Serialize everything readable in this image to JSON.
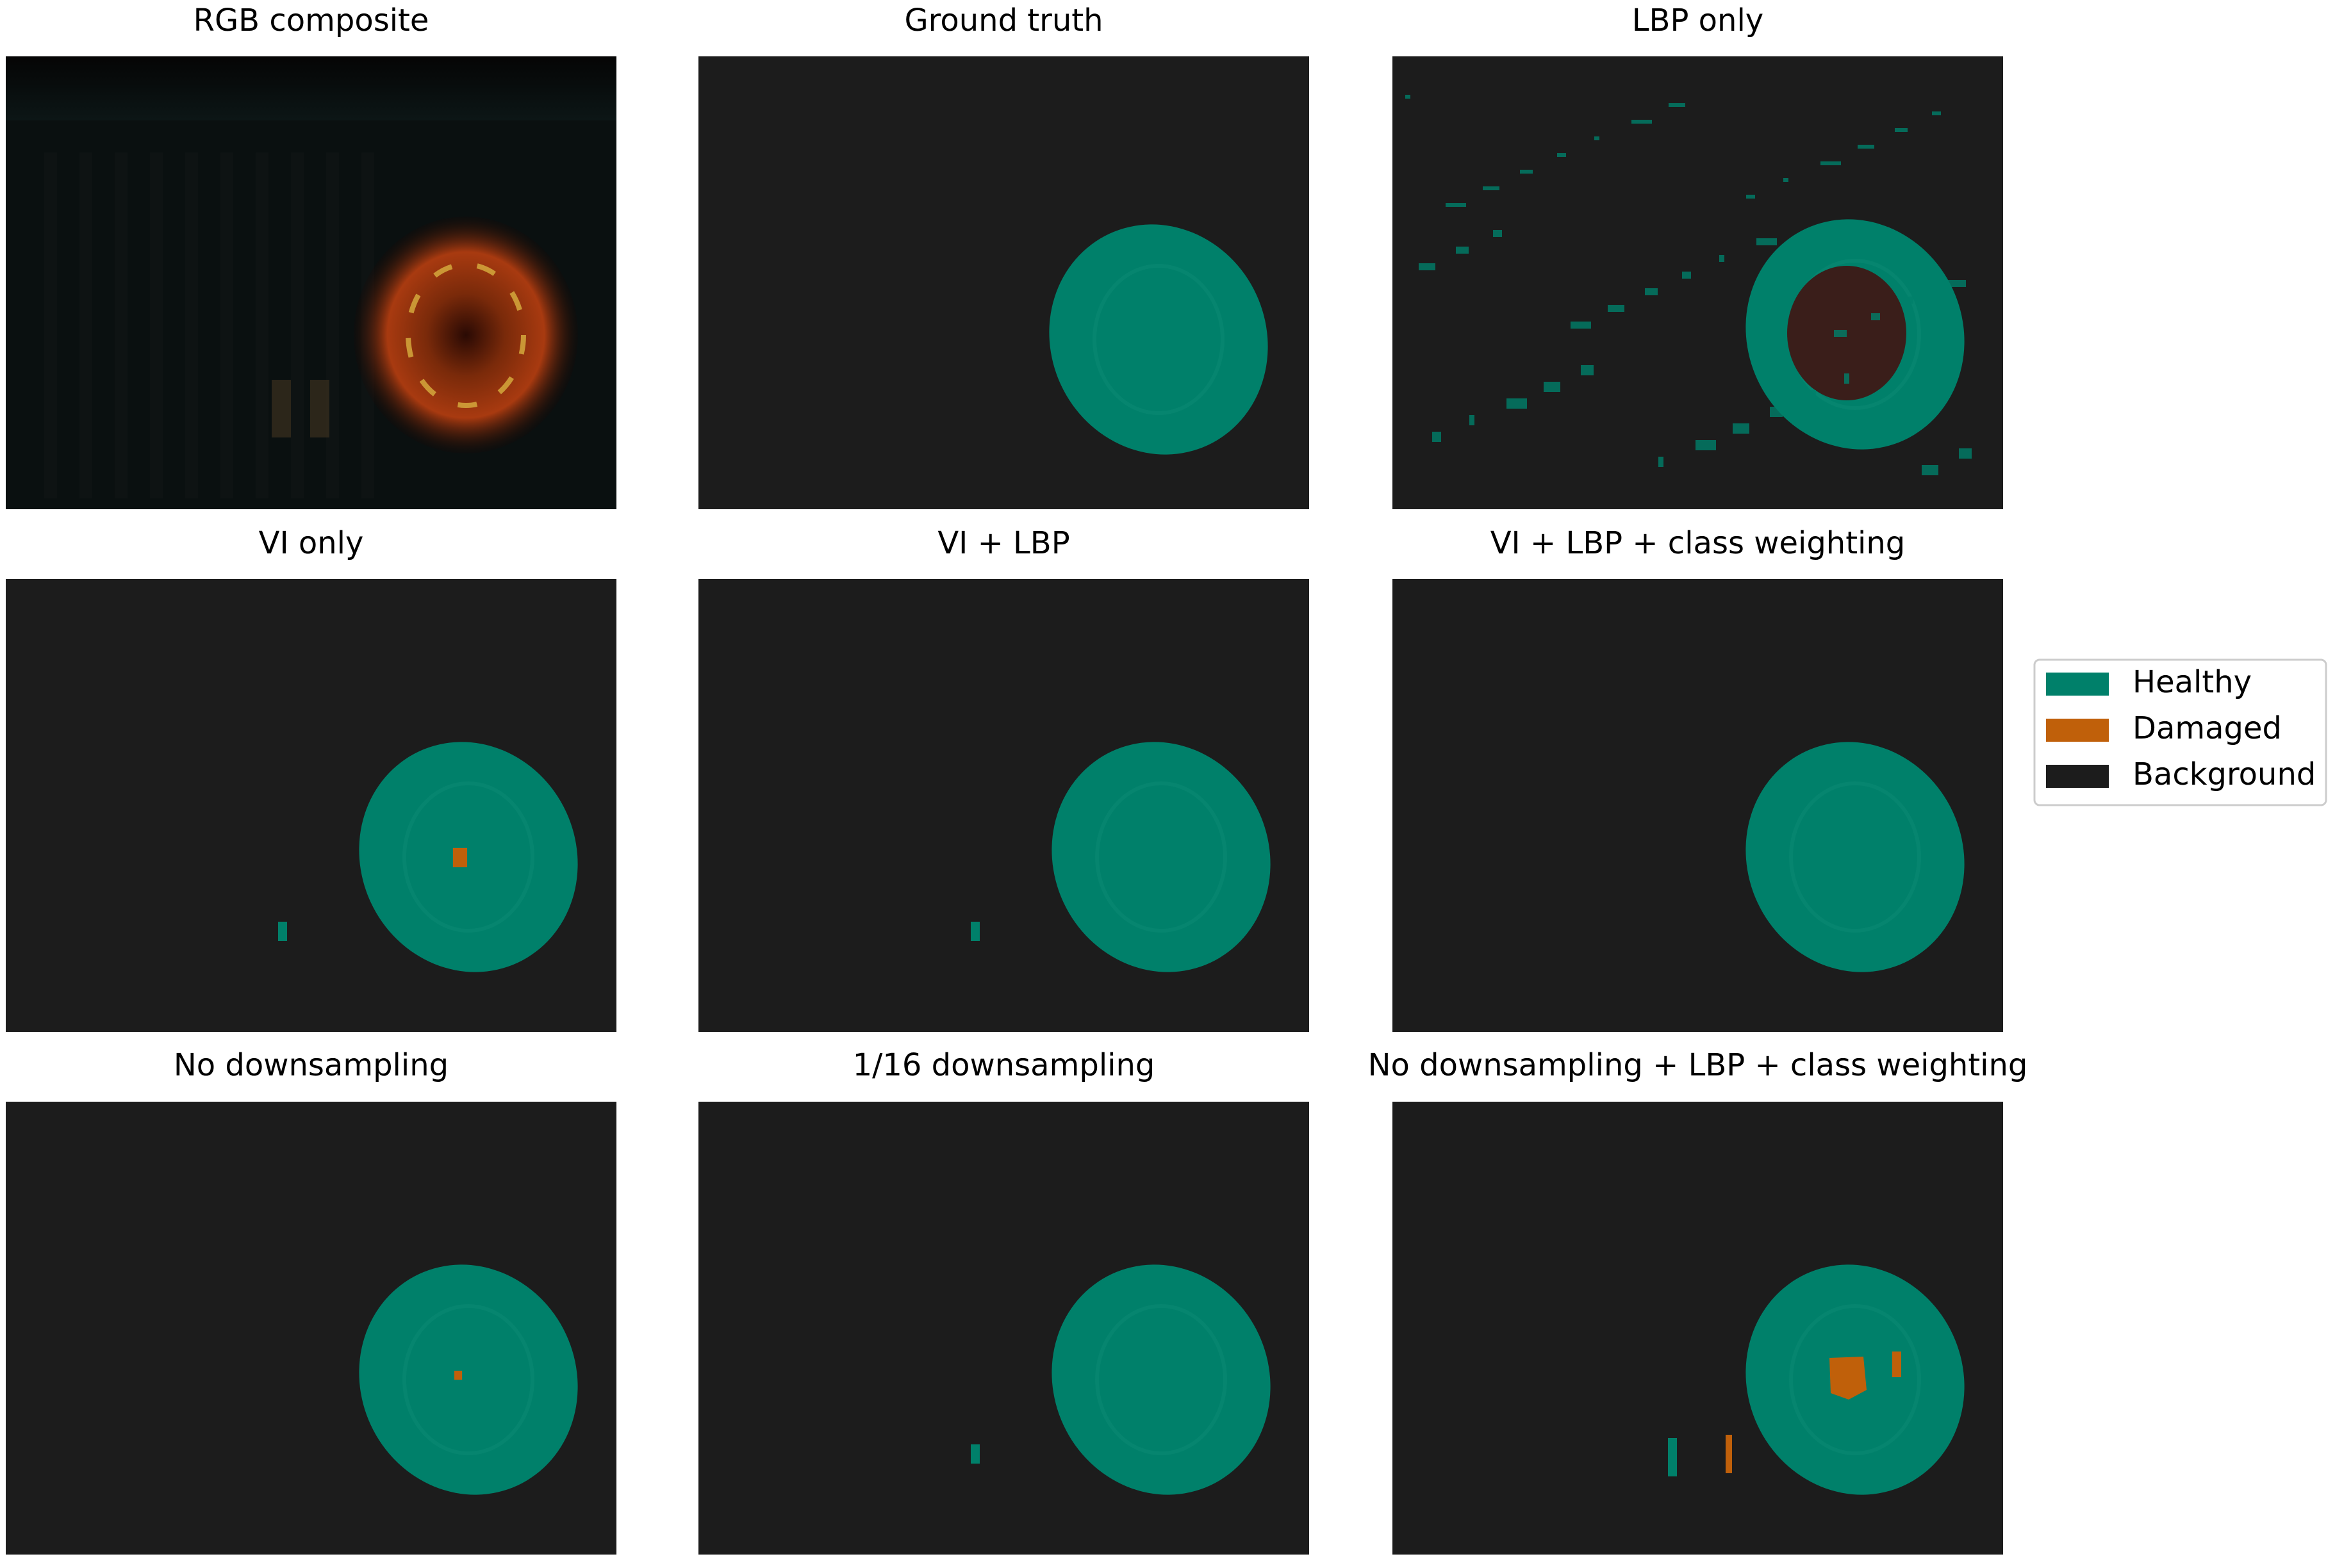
{
  "panels": [
    {
      "title": "RGB composite"
    },
    {
      "title": "Ground truth"
    },
    {
      "title": "LBP only"
    },
    {
      "title": "VI only"
    },
    {
      "title": "VI + LBP"
    },
    {
      "title": "VI + LBP + class weighting"
    },
    {
      "title": "No downsampling"
    },
    {
      "title": "1/16 downsampling"
    },
    {
      "title": "No downsampling + LBP + class weighting"
    }
  ],
  "legend": {
    "entries": [
      {
        "label": "Healthy"
      },
      {
        "label": "Damaged"
      },
      {
        "label": "Background"
      }
    ]
  }
}
